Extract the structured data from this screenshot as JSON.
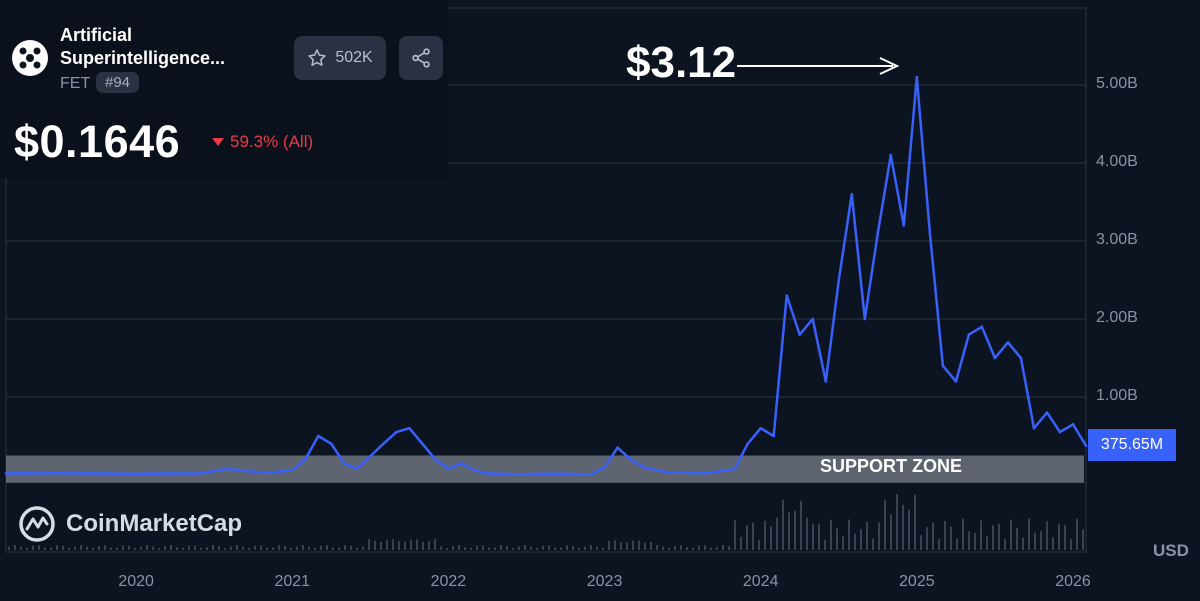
{
  "header": {
    "coin_name": "Artificial Superintelligence...",
    "symbol": "FET",
    "rank": "#94",
    "watchlist_count": "502K",
    "price": "$0.1646",
    "change": "59.3% (All)"
  },
  "annotations": {
    "peak_label": "$3.12",
    "support_label": "SUPPORT ZONE",
    "watermark": "CoinMarketCap",
    "last_value_label": "375.65M",
    "currency": "USD"
  },
  "colors": {
    "line": "#3861fb",
    "negative": "#ea3943",
    "background": "#0d1421",
    "support_band": "#8a8f99"
  },
  "chart_data": {
    "type": "line",
    "metric": "market cap",
    "x_range": [
      "2019-03",
      "2026-02"
    ],
    "ylim": [
      0,
      6000000000
    ],
    "ytick_labels": [
      "1.00B",
      "2.00B",
      "3.00B",
      "4.00B",
      "5.00B"
    ],
    "xtick_labels": [
      "2020",
      "2021",
      "2022",
      "2023",
      "2024",
      "2025",
      "2026"
    ],
    "grid": true,
    "support_zone": [
      -100000000,
      250000000
    ],
    "series": [
      {
        "x": [
          "2019-03",
          "2019-07",
          "2020-01",
          "2020-06",
          "2020-08",
          "2020-11",
          "2021-01",
          "2021-02",
          "2021-03",
          "2021-04",
          "2021-05",
          "2021-06",
          "2021-08",
          "2021-09",
          "2021-10",
          "2021-11",
          "2021-12",
          "2022-01",
          "2022-02",
          "2022-03",
          "2022-04",
          "2022-05",
          "2022-06",
          "2022-09",
          "2022-12",
          "2023-01",
          "2023-02",
          "2023-03",
          "2023-04",
          "2023-06",
          "2023-09",
          "2023-11",
          "2023-12",
          "2024-01",
          "2024-02",
          "2024-03",
          "2024-04",
          "2024-05",
          "2024-06",
          "2024-07",
          "2024-08",
          "2024-09",
          "2024-10",
          "2024-11",
          "2024-12",
          "2025-01",
          "2025-02",
          "2025-03",
          "2025-04",
          "2025-05",
          "2025-06",
          "2025-07",
          "2025-08",
          "2025-09",
          "2025-10",
          "2025-11",
          "2025-12",
          "2026-01",
          "2026-02"
        ],
        "y": [
          20000000,
          25000000,
          15000000,
          20000000,
          80000000,
          25000000,
          60000000,
          200000000,
          500000000,
          400000000,
          150000000,
          80000000,
          400000000,
          550000000,
          600000000,
          400000000,
          200000000,
          80000000,
          150000000,
          60000000,
          20000000,
          15000000,
          10000000,
          15000000,
          10000000,
          100000000,
          350000000,
          200000000,
          100000000,
          30000000,
          25000000,
          80000000,
          400000000,
          600000000,
          500000000,
          2300000000,
          1800000000,
          2000000000,
          1200000000,
          2500000000,
          3600000000,
          2000000000,
          3100000000,
          4100000000,
          3200000000,
          5100000000,
          3100000000,
          1400000000,
          1200000000,
          1800000000,
          1900000000,
          1500000000,
          1700000000,
          1500000000,
          600000000,
          800000000,
          550000000,
          650000000,
          375650000
        ]
      }
    ]
  }
}
